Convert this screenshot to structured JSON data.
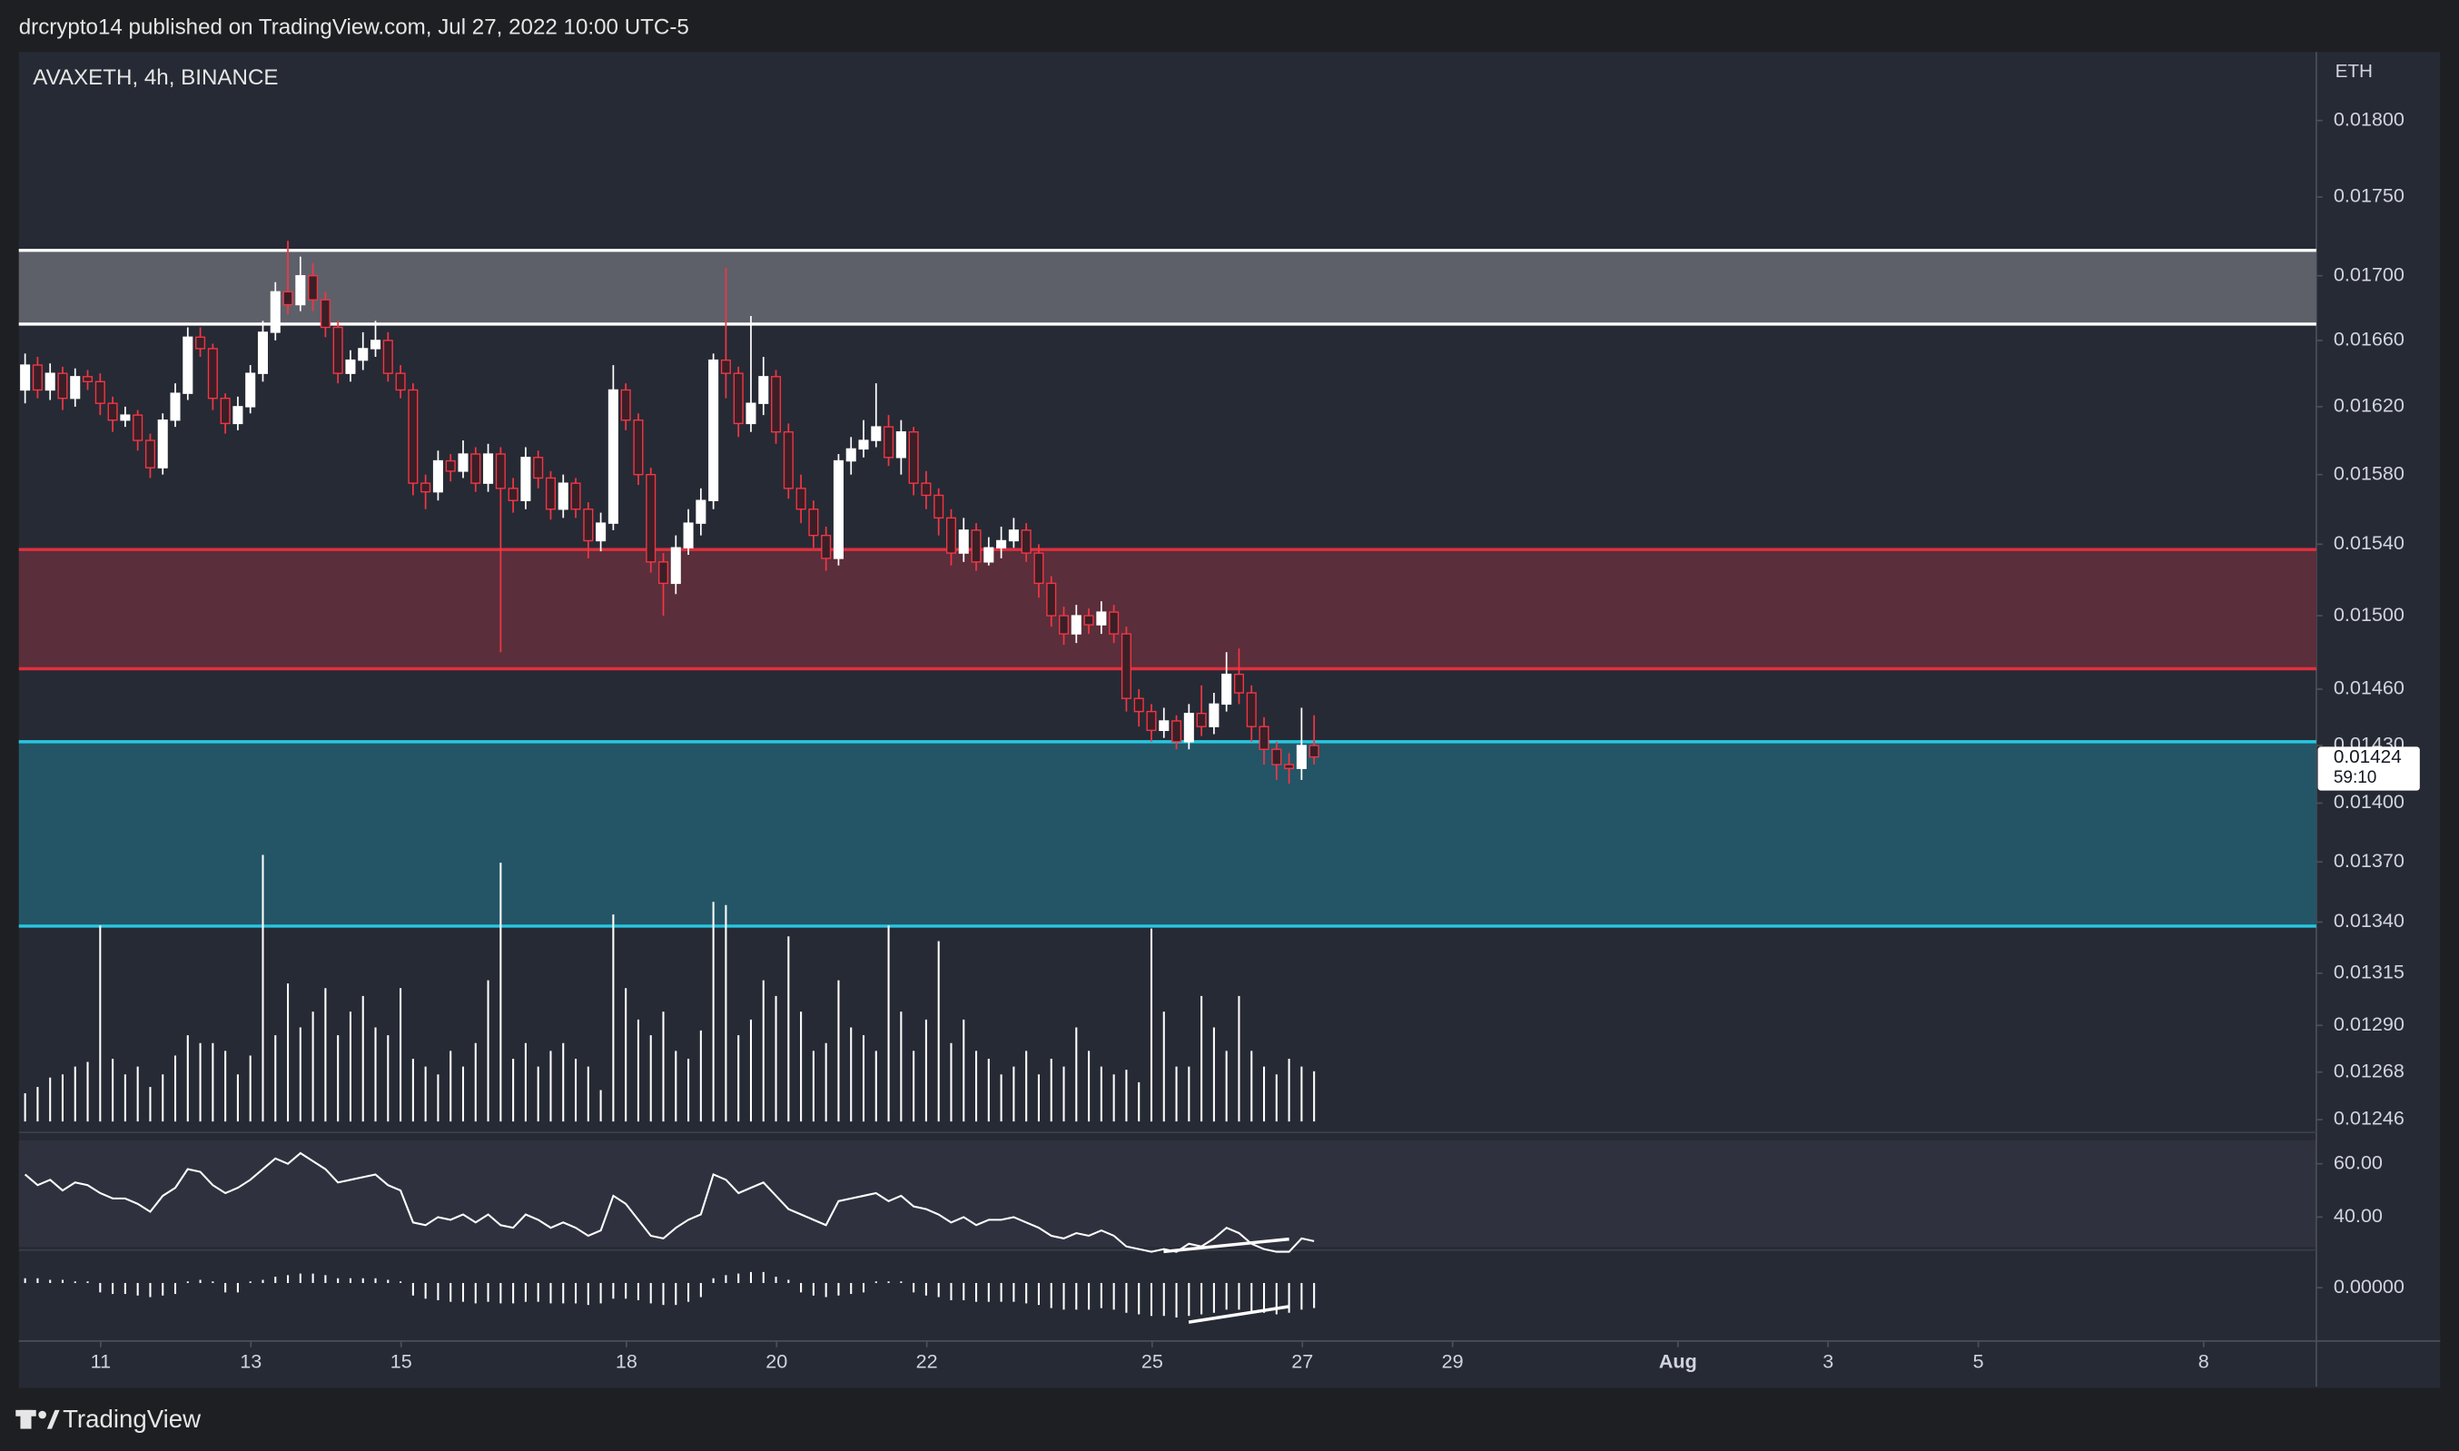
{
  "header": {
    "published": "drcrypto14 published on TradingView.com, Jul 27, 2022 10:00 UTC-5"
  },
  "footer": {
    "brand": "TradingView"
  },
  "chart_data": {
    "type": "candlestick",
    "title": "AVAXETH, 4h, BINANCE",
    "unit": "ETH",
    "log": true,
    "up_color": "#ffffff",
    "down_color": "#f23645",
    "ylim": [
      0.01243,
      0.01846
    ],
    "yticks": [
      {
        "value": 0.018,
        "label": "0.01800"
      },
      {
        "value": 0.0175,
        "label": "0.01750"
      },
      {
        "value": 0.017,
        "label": "0.01700"
      },
      {
        "value": 0.0166,
        "label": "0.01660"
      },
      {
        "value": 0.0162,
        "label": "0.01620"
      },
      {
        "value": 0.0158,
        "label": "0.01580"
      },
      {
        "value": 0.0154,
        "label": "0.01540"
      },
      {
        "value": 0.015,
        "label": "0.01500"
      },
      {
        "value": 0.0146,
        "label": "0.01460"
      },
      {
        "value": 0.0143,
        "label": "0.01430"
      },
      {
        "value": 0.014,
        "label": "0.01400"
      },
      {
        "value": 0.0137,
        "label": "0.01370"
      },
      {
        "value": 0.0134,
        "label": "0.01340"
      },
      {
        "value": 0.01315,
        "label": "0.01315"
      },
      {
        "value": 0.0129,
        "label": "0.01290"
      },
      {
        "value": 0.01268,
        "label": "0.01268"
      },
      {
        "value": 0.01246,
        "label": "0.01246"
      }
    ],
    "xlim": [
      9.91,
      40.5
    ],
    "xticks": [
      11,
      13,
      15,
      18,
      20,
      22,
      25,
      27,
      29,
      {
        "value": 32,
        "label": "Aug"
      },
      {
        "value": 34,
        "label": "3"
      },
      {
        "value": 36,
        "label": "5"
      },
      {
        "value": 39,
        "label": "8"
      }
    ],
    "countdown": "59:10",
    "zones": [
      {
        "top": 0.01716,
        "bottom": 0.0167,
        "fill": "#5d6069",
        "stroke": "#ffffff"
      },
      {
        "top": 0.01537,
        "bottom": 0.01471,
        "fill": "#5a2e3a",
        "stroke": "#e0303f"
      },
      {
        "top": 0.01432,
        "bottom": 0.01338,
        "fill": "#235566",
        "stroke": "#28c6e0"
      }
    ],
    "ohlc": [
      [
        0.0163,
        0.01652,
        0.01622,
        0.01645
      ],
      [
        0.01645,
        0.0165,
        0.01625,
        0.0163
      ],
      [
        0.0163,
        0.01646,
        0.01624,
        0.0164
      ],
      [
        0.0164,
        0.01644,
        0.01618,
        0.01625
      ],
      [
        0.01625,
        0.01643,
        0.0162,
        0.01638
      ],
      [
        0.01638,
        0.01642,
        0.0163,
        0.01635
      ],
      [
        0.01635,
        0.0164,
        0.01615,
        0.01622
      ],
      [
        0.01622,
        0.01626,
        0.01605,
        0.01612
      ],
      [
        0.01612,
        0.0162,
        0.01608,
        0.01615
      ],
      [
        0.01615,
        0.01618,
        0.01594,
        0.016
      ],
      [
        0.016,
        0.01604,
        0.01578,
        0.01584
      ],
      [
        0.01584,
        0.01616,
        0.0158,
        0.01612
      ],
      [
        0.01612,
        0.01634,
        0.01608,
        0.01628
      ],
      [
        0.01628,
        0.01668,
        0.01624,
        0.01662
      ],
      [
        0.01662,
        0.01668,
        0.0165,
        0.01655
      ],
      [
        0.01655,
        0.01658,
        0.01618,
        0.01625
      ],
      [
        0.01625,
        0.01628,
        0.01604,
        0.0161
      ],
      [
        0.0161,
        0.01626,
        0.01606,
        0.0162
      ],
      [
        0.0162,
        0.01645,
        0.01616,
        0.0164
      ],
      [
        0.0164,
        0.01672,
        0.01635,
        0.01665
      ],
      [
        0.01665,
        0.01696,
        0.0166,
        0.0169
      ],
      [
        0.0169,
        0.01722,
        0.01676,
        0.01682
      ],
      [
        0.01682,
        0.01712,
        0.01678,
        0.017
      ],
      [
        0.017,
        0.01708,
        0.01678,
        0.01685
      ],
      [
        0.01685,
        0.0169,
        0.01662,
        0.01668
      ],
      [
        0.01668,
        0.01672,
        0.01634,
        0.0164
      ],
      [
        0.0164,
        0.01654,
        0.01635,
        0.01648
      ],
      [
        0.01648,
        0.01665,
        0.01642,
        0.01655
      ],
      [
        0.01655,
        0.01672,
        0.0165,
        0.0166
      ],
      [
        0.0166,
        0.01665,
        0.01635,
        0.0164
      ],
      [
        0.0164,
        0.01645,
        0.01625,
        0.0163
      ],
      [
        0.0163,
        0.01634,
        0.01568,
        0.01575
      ],
      [
        0.01575,
        0.0158,
        0.0156,
        0.0157
      ],
      [
        0.0157,
        0.01594,
        0.01565,
        0.01588
      ],
      [
        0.01588,
        0.01592,
        0.01576,
        0.01582
      ],
      [
        0.01582,
        0.016,
        0.01578,
        0.01592
      ],
      [
        0.01592,
        0.01596,
        0.0157,
        0.01575
      ],
      [
        0.01575,
        0.01598,
        0.0157,
        0.01592
      ],
      [
        0.01592,
        0.01596,
        0.0148,
        0.01572
      ],
      [
        0.01572,
        0.01578,
        0.01558,
        0.01565
      ],
      [
        0.01565,
        0.01596,
        0.0156,
        0.0159
      ],
      [
        0.0159,
        0.01594,
        0.01572,
        0.01578
      ],
      [
        0.01578,
        0.01582,
        0.01554,
        0.0156
      ],
      [
        0.0156,
        0.0158,
        0.01555,
        0.01575
      ],
      [
        0.01575,
        0.01578,
        0.01555,
        0.0156
      ],
      [
        0.0156,
        0.01564,
        0.01532,
        0.01542
      ],
      [
        0.01542,
        0.01558,
        0.01536,
        0.01552
      ],
      [
        0.01552,
        0.01645,
        0.01548,
        0.0163
      ],
      [
        0.0163,
        0.01634,
        0.01606,
        0.01612
      ],
      [
        0.01612,
        0.01616,
        0.01574,
        0.0158
      ],
      [
        0.0158,
        0.01584,
        0.01524,
        0.0153
      ],
      [
        0.0153,
        0.01535,
        0.015,
        0.01518
      ],
      [
        0.01518,
        0.01545,
        0.01512,
        0.01538
      ],
      [
        0.01538,
        0.0156,
        0.01534,
        0.01552
      ],
      [
        0.01552,
        0.01572,
        0.01545,
        0.01565
      ],
      [
        0.01565,
        0.01652,
        0.0156,
        0.01648
      ],
      [
        0.01648,
        0.01705,
        0.01625,
        0.0164
      ],
      [
        0.0164,
        0.01644,
        0.01602,
        0.0161
      ],
      [
        0.0161,
        0.01675,
        0.01605,
        0.01622
      ],
      [
        0.01622,
        0.0165,
        0.01615,
        0.01638
      ],
      [
        0.01638,
        0.01642,
        0.01598,
        0.01605
      ],
      [
        0.01605,
        0.0161,
        0.01566,
        0.01572
      ],
      [
        0.01572,
        0.0158,
        0.01552,
        0.0156
      ],
      [
        0.0156,
        0.01565,
        0.01538,
        0.01545
      ],
      [
        0.01545,
        0.0155,
        0.01525,
        0.01532
      ],
      [
        0.01532,
        0.01592,
        0.01528,
        0.01588
      ],
      [
        0.01588,
        0.01602,
        0.0158,
        0.01595
      ],
      [
        0.01595,
        0.01612,
        0.0159,
        0.016
      ],
      [
        0.016,
        0.01634,
        0.01596,
        0.01608
      ],
      [
        0.01608,
        0.01615,
        0.01585,
        0.0159
      ],
      [
        0.0159,
        0.01612,
        0.0158,
        0.01605
      ],
      [
        0.01605,
        0.01608,
        0.01568,
        0.01575
      ],
      [
        0.01575,
        0.01582,
        0.0156,
        0.01568
      ],
      [
        0.01568,
        0.01572,
        0.01545,
        0.01555
      ],
      [
        0.01555,
        0.0156,
        0.01528,
        0.01535
      ],
      [
        0.01535,
        0.01555,
        0.0153,
        0.01548
      ],
      [
        0.01548,
        0.01552,
        0.01525,
        0.0153
      ],
      [
        0.0153,
        0.01544,
        0.01528,
        0.01538
      ],
      [
        0.01538,
        0.0155,
        0.01532,
        0.01542
      ],
      [
        0.01542,
        0.01555,
        0.01538,
        0.01548
      ],
      [
        0.01548,
        0.01552,
        0.0153,
        0.01535
      ],
      [
        0.01535,
        0.0154,
        0.0151,
        0.01518
      ],
      [
        0.01518,
        0.01522,
        0.01494,
        0.015
      ],
      [
        0.015,
        0.01505,
        0.01484,
        0.0149
      ],
      [
        0.0149,
        0.01506,
        0.01485,
        0.015
      ],
      [
        0.015,
        0.01504,
        0.0149,
        0.01495
      ],
      [
        0.01495,
        0.01508,
        0.0149,
        0.01502
      ],
      [
        0.01502,
        0.01506,
        0.01485,
        0.0149
      ],
      [
        0.0149,
        0.01494,
        0.01448,
        0.01455
      ],
      [
        0.01455,
        0.0146,
        0.0144,
        0.01448
      ],
      [
        0.01448,
        0.01452,
        0.01432,
        0.01438
      ],
      [
        0.01438,
        0.0145,
        0.01434,
        0.01443
      ],
      [
        0.01443,
        0.01446,
        0.01428,
        0.01432
      ],
      [
        0.01432,
        0.01452,
        0.01428,
        0.01447
      ],
      [
        0.01447,
        0.01462,
        0.01435,
        0.0144
      ],
      [
        0.0144,
        0.01458,
        0.01436,
        0.01452
      ],
      [
        0.01452,
        0.0148,
        0.01448,
        0.01468
      ],
      [
        0.01468,
        0.01482,
        0.01452,
        0.01458
      ],
      [
        0.01458,
        0.01462,
        0.01432,
        0.0144
      ],
      [
        0.0144,
        0.01445,
        0.0142,
        0.01428
      ],
      [
        0.01428,
        0.01432,
        0.01412,
        0.0142
      ],
      [
        0.0142,
        0.01426,
        0.0141,
        0.01418
      ],
      [
        0.01418,
        0.0145,
        0.01412,
        0.0143
      ],
      [
        0.0143,
        0.01446,
        0.0142,
        0.01424
      ]
    ],
    "volume": [
      18,
      22,
      28,
      30,
      35,
      38,
      125,
      40,
      30,
      35,
      22,
      30,
      42,
      55,
      50,
      50,
      45,
      30,
      42,
      170,
      55,
      88,
      60,
      70,
      85,
      55,
      70,
      80,
      60,
      55,
      85,
      40,
      35,
      30,
      45,
      35,
      50,
      90,
      165,
      40,
      50,
      35,
      45,
      50,
      40,
      35,
      20,
      132,
      85,
      65,
      55,
      70,
      45,
      40,
      58,
      140,
      138,
      55,
      65,
      90,
      80,
      118,
      70,
      45,
      50,
      90,
      60,
      55,
      45,
      125,
      70,
      45,
      65,
      115,
      50,
      65,
      45,
      40,
      30,
      35,
      45,
      30,
      40,
      35,
      60,
      45,
      35,
      30,
      33,
      25,
      123,
      70,
      35,
      35,
      80,
      60,
      45,
      80,
      45,
      35,
      30,
      40,
      35,
      32
    ],
    "rsi": {
      "ylim": [
        28.8,
        68.8
      ],
      "yticks": [
        {
          "value": 60,
          "label": "60.00"
        },
        {
          "value": 40,
          "label": "40.00"
        }
      ],
      "values": [
        56,
        52,
        54,
        50,
        53,
        52,
        49,
        47,
        47,
        45,
        42,
        48,
        51,
        58,
        57,
        52,
        49,
        51,
        54,
        58,
        62,
        60,
        64,
        61,
        58,
        53,
        54,
        55,
        56,
        52,
        50,
        38,
        37,
        40,
        39,
        41,
        38,
        41,
        37,
        36,
        41,
        39,
        36,
        38,
        36,
        33,
        35,
        48,
        45,
        39,
        33,
        32,
        36,
        39,
        41,
        56,
        54,
        49,
        51,
        53,
        48,
        43,
        41,
        39,
        37,
        46,
        47,
        48,
        49,
        46,
        48,
        44,
        43,
        41,
        38,
        40,
        37,
        39,
        39,
        40,
        38,
        36,
        33,
        32,
        34,
        33,
        35,
        33,
        29,
        28,
        27,
        28,
        27,
        30,
        29,
        32,
        36,
        34,
        30,
        28,
        27,
        27,
        32,
        31
      ]
    },
    "macd": {
      "ylim": [
        -2.9e-05,
        2.1e-05
      ],
      "yticks": [
        {
          "value": 0,
          "label": "0.00000"
        }
      ],
      "values": [
        3e-06,
        3e-06,
        2e-06,
        2e-06,
        1e-06,
        1e-06,
        0,
        -1e-06,
        -1e-06,
        -2e-06,
        -3e-06,
        -2e-06,
        -1e-06,
        1e-06,
        2e-06,
        1e-06,
        0,
        0,
        1e-06,
        2e-06,
        4e-06,
        5e-06,
        6e-06,
        6e-06,
        5e-06,
        3e-06,
        3e-06,
        3e-06,
        3e-06,
        2e-06,
        1e-06,
        -2e-06,
        -4e-06,
        -5e-06,
        -6e-06,
        -6e-06,
        -7e-06,
        -6e-06,
        -7e-06,
        -7e-06,
        -6e-06,
        -6e-06,
        -7e-06,
        -7e-06,
        -7e-06,
        -8e-06,
        -7e-06,
        -4e-06,
        -4e-06,
        -5e-06,
        -7e-06,
        -8e-06,
        -8e-06,
        -6e-06,
        -3e-06,
        3e-06,
        5e-06,
        6e-06,
        7e-06,
        7e-06,
        4e-06,
        2e-06,
        0,
        -2e-06,
        -3e-06,
        -2e-06,
        -1e-06,
        0,
        1e-06,
        1e-06,
        1e-06,
        0,
        -2e-06,
        -3e-06,
        -5e-06,
        -5e-06,
        -6e-06,
        -6e-06,
        -6e-06,
        -6e-06,
        -7e-06,
        -8e-06,
        -1e-05,
        -1.1e-05,
        -1.1e-05,
        -1.1e-05,
        -1e-05,
        -1.1e-05,
        -1.3e-05,
        -1.4e-05,
        -1.5e-05,
        -1.5e-05,
        -1.6e-05,
        -1.5e-05,
        -1.4e-05,
        -1.3e-05,
        -1.1e-05,
        -1.1e-05,
        -1.2e-05,
        -1.3e-05,
        -1.4e-05,
        -1.3e-05,
        -1.1e-05,
        -1e-05
      ]
    }
  }
}
